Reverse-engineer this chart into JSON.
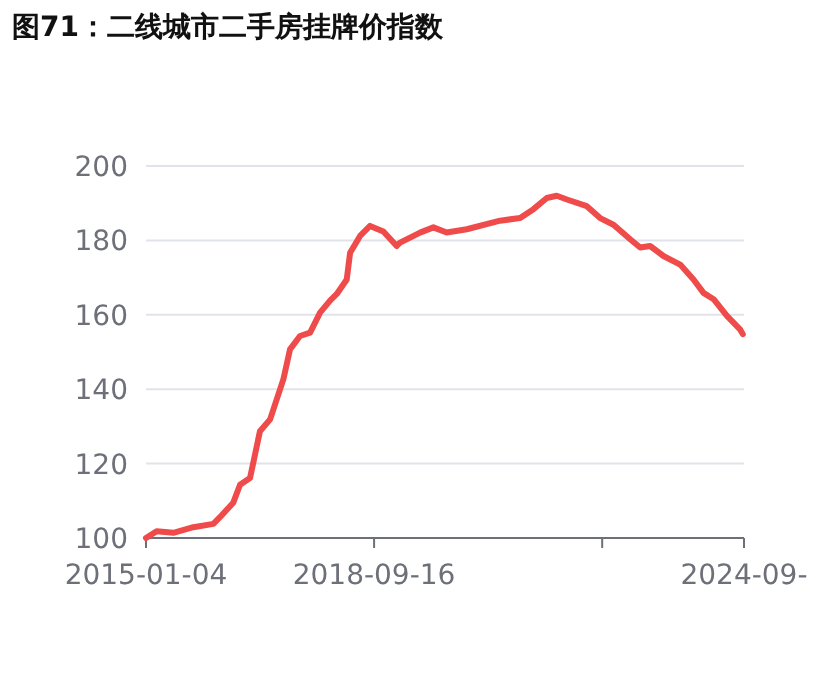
{
  "chart_data": {
    "type": "line",
    "title": "图71：二线城市二手房挂牌价指数",
    "x": [
      "2015-01-04",
      "2015-03-08",
      "2015-06-15",
      "2015-10-11",
      "2016-02-07",
      "2016-03-17",
      "2016-06-04",
      "2016-07-14",
      "2016-09-11",
      "2016-11-09",
      "2017-01-08",
      "2017-03-28",
      "2017-05-06",
      "2017-07-04",
      "2017-09-02",
      "2017-10-31",
      "2017-12-29",
      "2018-02-07",
      "2018-04-07",
      "2018-04-27",
      "2018-06-25",
      "2018-08-23",
      "2018-11-10",
      "2019-01-28",
      "2019-02-17",
      "2019-06-15",
      "2019-09-02",
      "2019-11-20",
      "2020-03-18",
      "2020-10-01",
      "2021-01-28",
      "2021-04-17",
      "2021-07-05",
      "2021-09-02",
      "2021-11-01",
      "2022-02-27",
      "2022-05-17",
      "2022-08-04",
      "2022-11-11",
      "2023-01-09",
      "2023-03-09",
      "2023-05-27",
      "2023-09-03",
      "2023-11-21",
      "2024-01-19",
      "2024-03-19",
      "2024-06-06",
      "2024-08-24",
      "2024-09-08"
    ],
    "series": [
      {
        "color": "#ef4b4b",
        "values": [
          100,
          101.8,
          101.4,
          102.9,
          103.8,
          105.6,
          109.5,
          114.3,
          116.1,
          128.7,
          131.9,
          142.7,
          150.7,
          154.3,
          155.2,
          160.6,
          163.8,
          165.6,
          169.5,
          176.7,
          181.2,
          183.9,
          182.4,
          178.5,
          179.4,
          182.1,
          183.5,
          182.1,
          183,
          185.3,
          186,
          188.4,
          191.4,
          192,
          191,
          189.2,
          186,
          184.2,
          180.3,
          178.1,
          178.5,
          175.8,
          173.5,
          169.5,
          165.9,
          164.2,
          159.7,
          156,
          154.8
        ]
      }
    ],
    "xlim": [
      "2015-01-04",
      "2024-09-15"
    ],
    "xticks": [
      {
        "value": "2015-01-04",
        "label": "2015-01-04"
      },
      {
        "value": "2018-09-16",
        "label": "2018-09-16"
      },
      {
        "value": "2022-05-29",
        "label": null
      },
      {
        "value": "2024-09-15",
        "label": "2024-09-"
      }
    ],
    "ylim": [
      100,
      200
    ],
    "yticks": [
      100,
      120,
      140,
      160,
      180,
      200
    ],
    "grid": "y",
    "marker": "none",
    "line_style": "solid"
  }
}
